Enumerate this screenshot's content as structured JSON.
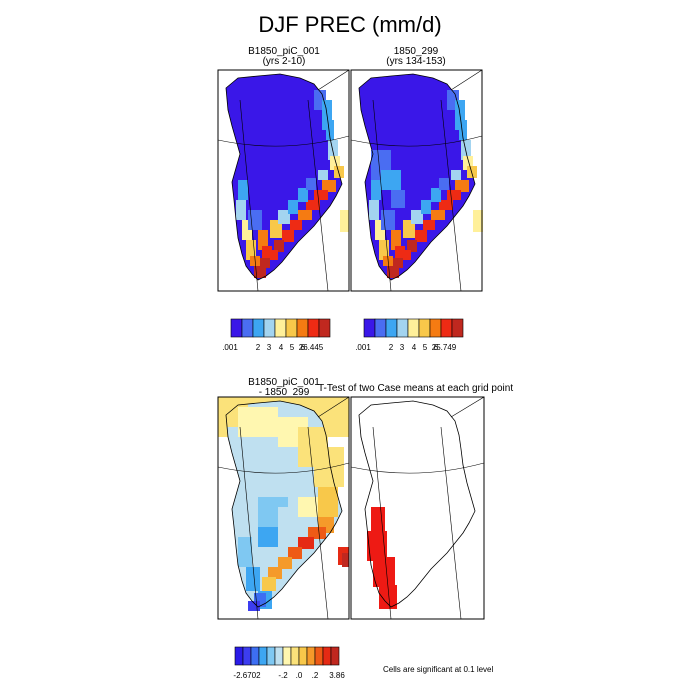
{
  "title": "DJF PREC (mm/d)",
  "panels": [
    {
      "title_line1": "B1850_piC_001",
      "title_line2": "(yrs 2-10)"
    },
    {
      "title_line1": "1850_299",
      "title_line2": "(yrs 134-153)"
    },
    {
      "title_line1": "B1850_piC_001",
      "title_line2": "- 1850_299"
    },
    {
      "title_line1": "T-Test of two Case means at each grid point",
      "title_line2": ""
    }
  ],
  "colorbars": [
    {
      "colors": [
        "#3a17e8",
        "#4a6df2",
        "#3da6f2",
        "#a3d4f0",
        "#fff09a",
        "#f8c84a",
        "#f57b12",
        "#ee2b14",
        "#c0281f"
      ],
      "labels": [
        ".001",
        "2",
        "3",
        "4",
        "5",
        "6",
        "26.445"
      ]
    },
    {
      "colors": [
        "#3a17e8",
        "#4a6df2",
        "#3da6f2",
        "#a3d4f0",
        "#fff09a",
        "#f8c84a",
        "#f57b12",
        "#ee2b14",
        "#c0281f"
      ],
      "labels": [
        ".001",
        "2",
        "3",
        "4",
        "5",
        "6",
        "25.749"
      ]
    },
    {
      "colors": [
        "#2a1be8",
        "#3c3df0",
        "#3d6ef2",
        "#3da6f2",
        "#7fc8f2",
        "#bfe0f0",
        "#fff7b0",
        "#fbe27a",
        "#f8c84a",
        "#f59a2a",
        "#ee5a16",
        "#e52a14",
        "#c0281f"
      ],
      "labels": [
        "-2.6702",
        "-.2",
        ".0",
        ".2",
        "3.86"
      ]
    }
  ],
  "significance_note": "Cells are significant at 0.1 level",
  "chart_data": [
    {
      "type": "heatmap",
      "title": "B1850_piC_001 (yrs 2-10)",
      "variable": "DJF PREC (mm/d)",
      "color_levels": [
        0.001,
        2,
        3,
        4,
        5,
        6
      ],
      "range": [
        0.001,
        26.445
      ],
      "description_values": {
        "interior": "< 2",
        "southeast_coast": "5 - 26.4"
      }
    },
    {
      "type": "heatmap",
      "title": "1850_299 (yrs 134-153)",
      "variable": "DJF PREC (mm/d)",
      "color_levels": [
        0.001,
        2,
        3,
        4,
        5,
        6
      ],
      "range": [
        0.001,
        25.749
      ],
      "description_values": {
        "interior": "< 2",
        "southeast_coast": "5 - 25.7"
      }
    },
    {
      "type": "heatmap",
      "title": "B1850_piC_001 - 1850_299",
      "color_levels": [
        -0.2,
        0.0,
        0.2
      ],
      "range": [
        -2.6702,
        3.86
      ]
    },
    {
      "type": "heatmap",
      "title": "T-Test of two Case means at each grid point",
      "significance_level": 0.1
    }
  ]
}
